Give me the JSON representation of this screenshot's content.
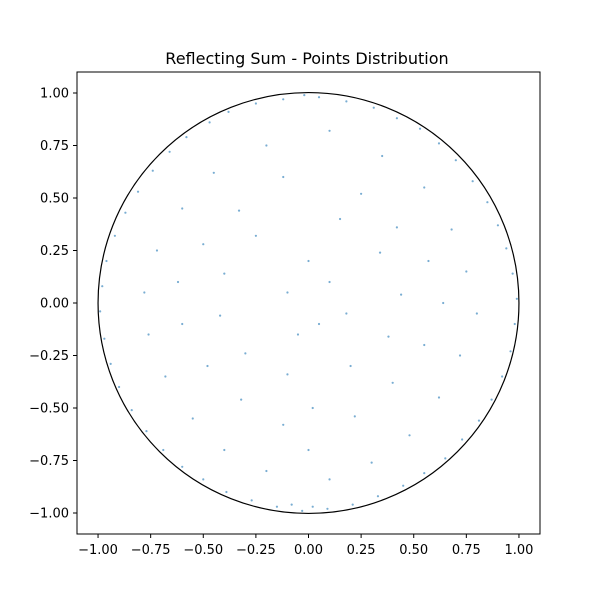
{
  "chart_data": {
    "type": "scatter",
    "title": "Reflecting Sum - Points Distribution",
    "xlabel": "",
    "ylabel": "",
    "xlim": [
      -1.1,
      1.1
    ],
    "ylim": [
      -1.1,
      1.1
    ],
    "grid": false,
    "legend": "none",
    "x_ticks": [
      "−1.00",
      "−0.75",
      "−0.50",
      "−0.25",
      "0.00",
      "0.25",
      "0.50",
      "0.75",
      "1.00"
    ],
    "y_ticks": [
      "−1.00",
      "−0.75",
      "−0.50",
      "−0.25",
      "0.00",
      "0.25",
      "0.50",
      "0.75",
      "1.00"
    ],
    "boundary": {
      "shape": "circle",
      "center": [
        0,
        0
      ],
      "radius": 1.0,
      "color": "#000000"
    },
    "point_color": "#1f77b4",
    "point_alpha": 0.6,
    "series": [
      {
        "points": [
          [
            -0.02,
            0.99
          ],
          [
            0.05,
            0.98
          ],
          [
            -0.12,
            0.97
          ],
          [
            0.18,
            0.96
          ],
          [
            -0.25,
            0.95
          ],
          [
            0.31,
            0.93
          ],
          [
            -0.38,
            0.91
          ],
          [
            0.42,
            0.88
          ],
          [
            -0.47,
            0.86
          ],
          [
            0.53,
            0.83
          ],
          [
            -0.58,
            0.79
          ],
          [
            0.62,
            0.76
          ],
          [
            -0.66,
            0.72
          ],
          [
            0.7,
            0.68
          ],
          [
            -0.74,
            0.63
          ],
          [
            0.78,
            0.58
          ],
          [
            -0.81,
            0.53
          ],
          [
            0.85,
            0.48
          ],
          [
            -0.87,
            0.43
          ],
          [
            0.9,
            0.37
          ],
          [
            -0.92,
            0.32
          ],
          [
            0.94,
            0.26
          ],
          [
            -0.96,
            0.2
          ],
          [
            0.97,
            0.14
          ],
          [
            -0.98,
            0.08
          ],
          [
            0.99,
            0.02
          ],
          [
            -0.99,
            -0.04
          ],
          [
            0.98,
            -0.1
          ],
          [
            -0.97,
            -0.17
          ],
          [
            0.96,
            -0.23
          ],
          [
            -0.94,
            -0.29
          ],
          [
            0.92,
            -0.35
          ],
          [
            -0.9,
            -0.4
          ],
          [
            0.87,
            -0.46
          ],
          [
            -0.84,
            -0.51
          ],
          [
            0.81,
            -0.56
          ],
          [
            -0.77,
            -0.61
          ],
          [
            0.73,
            -0.65
          ],
          [
            -0.69,
            -0.7
          ],
          [
            0.65,
            -0.74
          ],
          [
            -0.6,
            -0.78
          ],
          [
            0.55,
            -0.81
          ],
          [
            -0.5,
            -0.84
          ],
          [
            0.45,
            -0.87
          ],
          [
            -0.39,
            -0.9
          ],
          [
            0.33,
            -0.92
          ],
          [
            -0.27,
            -0.94
          ],
          [
            0.21,
            -0.96
          ],
          [
            -0.15,
            -0.97
          ],
          [
            0.09,
            -0.98
          ],
          [
            -0.03,
            -0.99
          ],
          [
            0.02,
            -0.97
          ],
          [
            -0.08,
            -0.96
          ],
          [
            0.1,
            0.82
          ],
          [
            -0.2,
            0.75
          ],
          [
            0.35,
            0.7
          ],
          [
            -0.45,
            0.62
          ],
          [
            0.55,
            0.55
          ],
          [
            -0.6,
            0.45
          ],
          [
            0.68,
            0.35
          ],
          [
            -0.72,
            0.25
          ],
          [
            0.75,
            0.15
          ],
          [
            -0.78,
            0.05
          ],
          [
            0.8,
            -0.05
          ],
          [
            -0.76,
            -0.15
          ],
          [
            0.72,
            -0.25
          ],
          [
            -0.68,
            -0.35
          ],
          [
            0.62,
            -0.45
          ],
          [
            -0.55,
            -0.55
          ],
          [
            0.48,
            -0.63
          ],
          [
            -0.4,
            -0.7
          ],
          [
            0.3,
            -0.76
          ],
          [
            -0.2,
            -0.8
          ],
          [
            0.1,
            -0.84
          ],
          [
            0.0,
            -0.7
          ],
          [
            -0.12,
            0.6
          ],
          [
            0.25,
            0.52
          ],
          [
            -0.33,
            0.44
          ],
          [
            0.42,
            0.36
          ],
          [
            -0.5,
            0.28
          ],
          [
            0.57,
            0.2
          ],
          [
            -0.62,
            0.1
          ],
          [
            0.64,
            0.0
          ],
          [
            -0.6,
            -0.1
          ],
          [
            0.55,
            -0.2
          ],
          [
            -0.48,
            -0.3
          ],
          [
            0.4,
            -0.38
          ],
          [
            -0.32,
            -0.46
          ],
          [
            0.22,
            -0.54
          ],
          [
            -0.12,
            -0.58
          ],
          [
            0.02,
            -0.5
          ],
          [
            0.15,
            0.4
          ],
          [
            -0.25,
            0.32
          ],
          [
            0.34,
            0.24
          ],
          [
            -0.4,
            0.14
          ],
          [
            0.44,
            0.04
          ],
          [
            -0.42,
            -0.06
          ],
          [
            0.38,
            -0.16
          ],
          [
            -0.3,
            -0.24
          ],
          [
            0.2,
            -0.3
          ],
          [
            -0.1,
            -0.34
          ],
          [
            0.0,
            0.2
          ],
          [
            0.1,
            0.1
          ],
          [
            -0.1,
            0.05
          ],
          [
            0.05,
            -0.1
          ],
          [
            -0.05,
            -0.15
          ],
          [
            0.18,
            -0.05
          ]
        ]
      }
    ]
  }
}
